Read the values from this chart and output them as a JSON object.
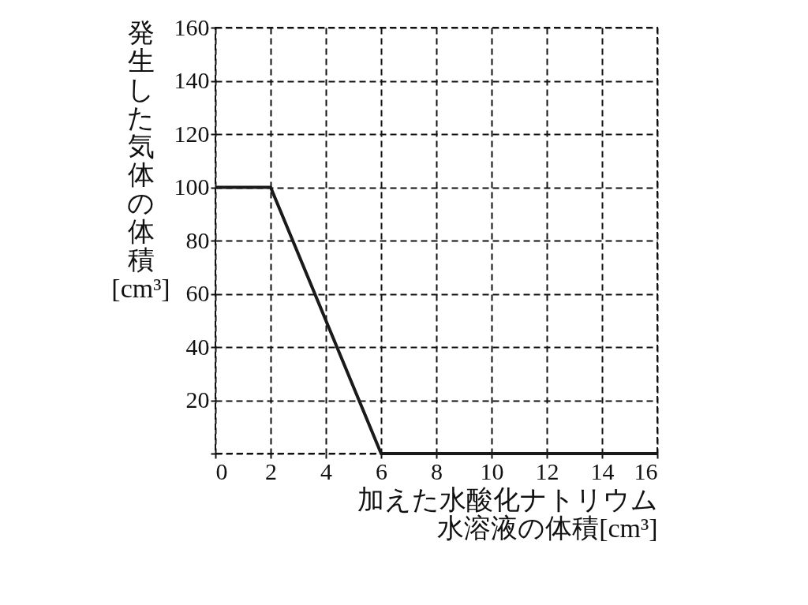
{
  "chart_data": {
    "type": "line",
    "xlabel": "加えた水酸化ナトリウム水溶液の体積[cm³]",
    "ylabel": "発生した気体の体積[cm³]",
    "x": [
      0,
      2,
      6,
      16
    ],
    "series": [
      {
        "color": "#1a1a1a",
        "values": [
          100,
          100,
          0,
          0
        ]
      }
    ],
    "xlim": [
      0,
      16
    ],
    "xticks": [
      0,
      2,
      4,
      6,
      8,
      10,
      12,
      14,
      16
    ],
    "ylim": [
      0,
      160
    ],
    "yticks": [
      {
        "value": 0,
        "label": null
      },
      20,
      40,
      60,
      80,
      100,
      120,
      140,
      160
    ],
    "grid": true,
    "marker": "none",
    "line_style": "solid"
  }
}
